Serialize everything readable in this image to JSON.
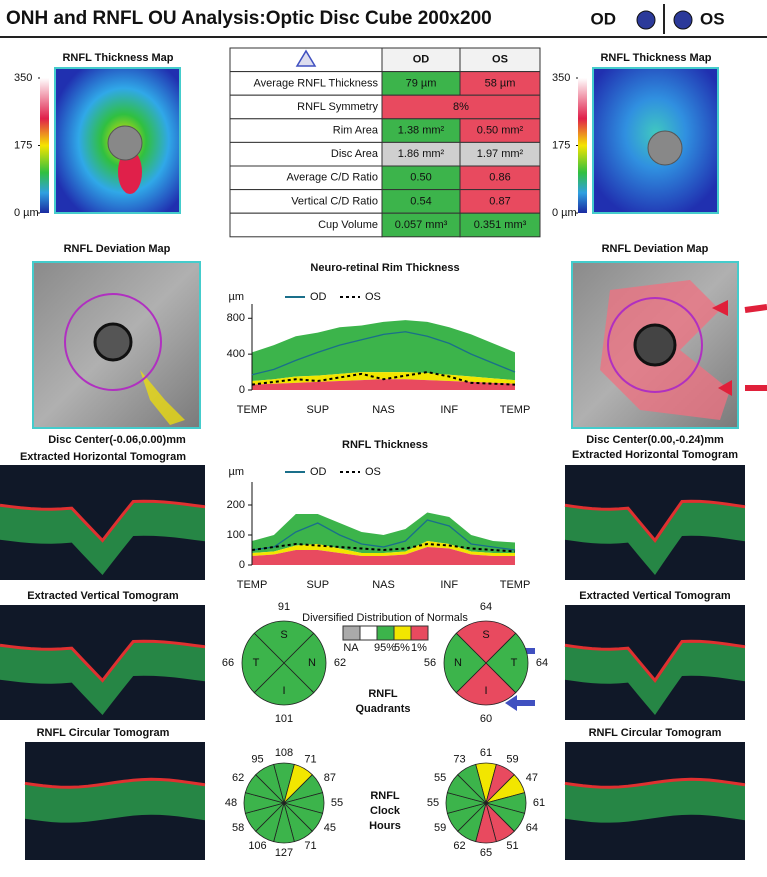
{
  "header": {
    "title": "ONH and RNFL OU Analysis:Optic Disc Cube 200x200",
    "od": "OD",
    "os": "OS"
  },
  "thickness_map": {
    "title": "RNFL Thickness Map",
    "scale_lim": [
      0,
      350
    ],
    "scale_ticks": [
      350,
      175,
      {
        "value": 0,
        "label": "0 µm"
      }
    ]
  },
  "table": {
    "header": [
      "OD",
      "OS"
    ],
    "rows": [
      {
        "label": "Average RNFL Thickness",
        "od": "79 µm",
        "os": "58 µm",
        "od_color": "#3cb44b",
        "os_color": "#e84a5f"
      },
      {
        "label": "RNFL Symmetry",
        "ou": "8%",
        "ou_color": "#e84a5f"
      },
      {
        "label": "Rim Area",
        "od": "1.38 mm²",
        "os": "0.50 mm²",
        "od_color": "#3cb44b",
        "os_color": "#e84a5f"
      },
      {
        "label": "Disc Area",
        "od": "1.86 mm²",
        "os": "1.97 mm²",
        "od_color": "#cfcfcf",
        "os_color": "#cfcfcf"
      },
      {
        "label": "Average C/D Ratio",
        "od": "0.50",
        "os": "0.86",
        "od_color": "#3cb44b",
        "os_color": "#e84a5f"
      },
      {
        "label": "Vertical C/D Ratio",
        "od": "0.54",
        "os": "0.87",
        "od_color": "#3cb44b",
        "os_color": "#e84a5f"
      },
      {
        "label": "Cup Volume",
        "od": "0.057 mm³",
        "os": "0.351 mm³",
        "od_color": "#3cb44b",
        "os_color": "#3cb44b"
      }
    ]
  },
  "deviation_map": {
    "title": "RNFL Deviation Map",
    "od_center": "Disc Center(-0.06,0.00)mm",
    "os_center": "Disc Center(0.00,-0.24)mm"
  },
  "tomograms": {
    "horizontal": "Extracted Horizontal Tomogram",
    "vertical": "Extracted Vertical Tomogram",
    "circular": "RNFL Circular Tomogram"
  },
  "charts": [
    {
      "type": "line",
      "title": "Neuro-retinal Rim Thickness",
      "y_unit": "µm",
      "ylim": [
        0,
        870
      ],
      "yticks": [
        0,
        400,
        800
      ],
      "x_labels": [
        "TEMP",
        "SUP",
        "NAS",
        "INF",
        "TEMP"
      ],
      "series": [
        {
          "name": "OD",
          "color": "#1a6f8a",
          "values": [
            170,
            230,
            330,
            420,
            500,
            560,
            620,
            650,
            600,
            520,
            400,
            300,
            200
          ]
        },
        {
          "name": "OS",
          "color": "#000000",
          "values": [
            60,
            90,
            120,
            100,
            140,
            180,
            120,
            160,
            200,
            150,
            80,
            70,
            60
          ]
        }
      ],
      "bands": {
        "red_top": [
          60,
          70,
          80,
          90,
          100,
          110,
          120,
          120,
          110,
          100,
          90,
          80,
          70
        ],
        "yellow_top": [
          100,
          120,
          150,
          160,
          180,
          200,
          200,
          200,
          190,
          170,
          150,
          130,
          110
        ],
        "green_top": [
          420,
          500,
          600,
          640,
          700,
          720,
          760,
          780,
          760,
          700,
          620,
          520,
          420
        ]
      }
    },
    {
      "type": "line",
      "title": "RNFL Thickness",
      "y_unit": "µm",
      "ylim": [
        0,
        250
      ],
      "yticks": [
        0,
        100,
        200
      ],
      "x_labels": [
        "TEMP",
        "SUP",
        "NAS",
        "INF",
        "TEMP"
      ],
      "series": [
        {
          "name": "OD",
          "color": "#1a6f8a",
          "values": [
            50,
            60,
            110,
            140,
            100,
            70,
            60,
            80,
            150,
            130,
            70,
            60,
            50
          ]
        },
        {
          "name": "OS",
          "color": "#000000",
          "values": [
            50,
            60,
            70,
            65,
            60,
            55,
            50,
            55,
            70,
            65,
            55,
            50,
            45
          ]
        }
      ],
      "bands": {
        "red_top": [
          30,
          35,
          50,
          50,
          40,
          30,
          30,
          35,
          60,
          55,
          35,
          30,
          30
        ],
        "yellow_top": [
          40,
          45,
          65,
          70,
          55,
          40,
          40,
          45,
          80,
          70,
          45,
          40,
          40
        ],
        "green_top": [
          80,
          100,
          170,
          170,
          140,
          110,
          100,
          120,
          175,
          160,
          100,
          80,
          75
        ]
      }
    }
  ],
  "legend": {
    "title": "Diversified Distribution of Normals",
    "swatches": [
      "#aaaaaa",
      "#ffffff",
      "#3cb44b",
      "#f2e600",
      "#e84a5f"
    ],
    "labels": [
      "NA",
      "95%",
      "5%",
      "1%"
    ]
  },
  "quadrants": {
    "title": [
      "RNFL",
      "Quadrants"
    ],
    "od": {
      "values": [
        91,
        62,
        101,
        66
      ],
      "letters": [
        "S",
        "N",
        "I",
        "T"
      ],
      "colors": [
        "#3cb44b",
        "#3cb44b",
        "#3cb44b",
        "#3cb44b"
      ]
    },
    "os": {
      "values": [
        64,
        64,
        60,
        56
      ],
      "letters": [
        "S",
        "T",
        "I",
        "N"
      ],
      "colors": [
        "#e84a5f",
        "#3cb44b",
        "#e84a5f",
        "#3cb44b"
      ]
    }
  },
  "clock_hours": {
    "title": [
      "RNFL",
      "Clock",
      "Hours"
    ],
    "od": {
      "values": [
        108,
        71,
        87,
        55,
        45,
        71,
        127,
        106,
        58,
        48,
        62,
        95
      ],
      "colors": [
        "#3cb44b",
        "#f2e600",
        "#3cb44b",
        "#3cb44b",
        "#3cb44b",
        "#3cb44b",
        "#3cb44b",
        "#3cb44b",
        "#3cb44b",
        "#3cb44b",
        "#3cb44b",
        "#3cb44b"
      ]
    },
    "os": {
      "values": [
        61,
        59,
        47,
        61,
        64,
        51,
        65,
        62,
        59,
        55,
        55,
        73
      ],
      "colors": [
        "#f2e600",
        "#e84a5f",
        "#f2e600",
        "#3cb44b",
        "#3cb44b",
        "#e84a5f",
        "#e84a5f",
        "#3cb44b",
        "#3cb44b",
        "#3cb44b",
        "#3cb44b",
        "#3cb44b"
      ]
    }
  }
}
